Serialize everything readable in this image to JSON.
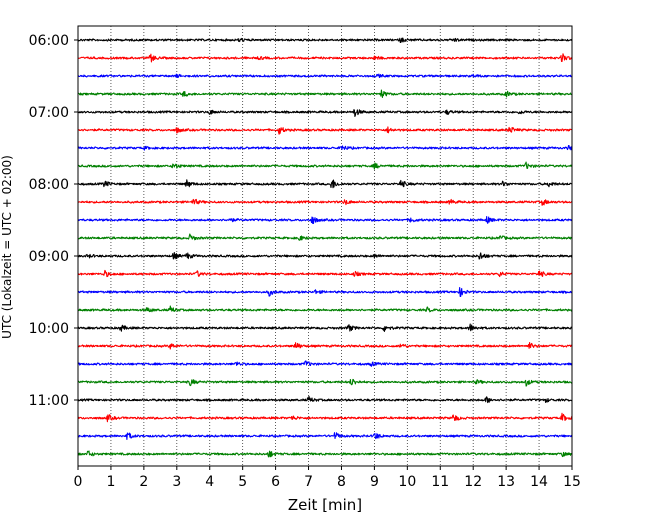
{
  "chart_data": {
    "type": "line",
    "title": "",
    "xlabel": "Zeit  [min]",
    "ylabel": "UTC (Lokalzeit = UTC + 02:00)",
    "xlim": [
      0,
      15
    ],
    "x_ticks": [
      0,
      1,
      2,
      3,
      4,
      5,
      6,
      7,
      8,
      9,
      10,
      11,
      12,
      13,
      14,
      15
    ],
    "x_tick_labels": [
      "0",
      "1",
      "2",
      "3",
      "4",
      "5",
      "6",
      "7",
      "8",
      "9",
      "10",
      "11",
      "12",
      "13",
      "14",
      "15"
    ],
    "grid": "vertical dotted",
    "trace_start": "06:00",
    "trace_minutes": 15,
    "y_tick_labels": [
      {
        "label": "06:00",
        "trace_index": 0
      },
      {
        "label": "07:00",
        "trace_index": 4
      },
      {
        "label": "08:00",
        "trace_index": 8
      },
      {
        "label": "09:00",
        "trace_index": 12
      },
      {
        "label": "10:00",
        "trace_index": 16
      },
      {
        "label": "11:00",
        "trace_index": 20
      }
    ],
    "color_cycle": [
      "#000000",
      "#ff0000",
      "#0000ff",
      "#008000"
    ],
    "series": [
      {
        "start": "06:00",
        "color": "#000000",
        "events": [
          [
            4.9,
            0.4
          ],
          [
            9.8,
            0.5
          ],
          [
            11.4,
            0.4
          ]
        ]
      },
      {
        "start": "06:15",
        "color": "#ff0000",
        "events": [
          [
            2.2,
            0.9
          ],
          [
            5.5,
            0.3
          ],
          [
            9.0,
            0.4
          ],
          [
            14.7,
            1.0
          ]
        ]
      },
      {
        "start": "06:30",
        "color": "#0000ff",
        "events": [
          [
            3.0,
            0.3
          ],
          [
            9.1,
            0.3
          ],
          [
            12.0,
            0.3
          ]
        ]
      },
      {
        "start": "06:45",
        "color": "#008000",
        "events": [
          [
            3.2,
            0.6
          ],
          [
            9.2,
            0.9
          ],
          [
            13.0,
            0.6
          ]
        ]
      },
      {
        "start": "07:00",
        "color": "#000000",
        "events": [
          [
            4.0,
            0.5
          ],
          [
            8.4,
            1.0
          ],
          [
            11.2,
            0.5
          ],
          [
            13.4,
            0.4
          ]
        ]
      },
      {
        "start": "07:15",
        "color": "#ff0000",
        "events": [
          [
            3.0,
            0.6
          ],
          [
            6.1,
            0.9
          ],
          [
            9.4,
            0.6
          ],
          [
            13.1,
            0.9
          ]
        ]
      },
      {
        "start": "07:30",
        "color": "#0000ff",
        "events": [
          [
            2.0,
            0.3
          ],
          [
            8.0,
            0.7
          ],
          [
            14.9,
            0.5
          ]
        ]
      },
      {
        "start": "07:45",
        "color": "#008000",
        "events": [
          [
            2.9,
            0.8
          ],
          [
            9.0,
            0.6
          ],
          [
            13.6,
            0.7
          ]
        ]
      },
      {
        "start": "08:00",
        "color": "#000000",
        "events": [
          [
            0.8,
            0.7
          ],
          [
            3.3,
            0.9
          ],
          [
            7.7,
            1.3
          ],
          [
            9.8,
            0.9
          ],
          [
            12.9,
            0.5
          ],
          [
            14.3,
            0.6
          ]
        ]
      },
      {
        "start": "08:15",
        "color": "#ff0000",
        "events": [
          [
            3.5,
            0.8
          ],
          [
            8.1,
            0.6
          ],
          [
            11.3,
            0.6
          ],
          [
            14.1,
            0.7
          ]
        ]
      },
      {
        "start": "08:30",
        "color": "#0000ff",
        "events": [
          [
            4.6,
            0.4
          ],
          [
            7.1,
            1.0
          ],
          [
            10.1,
            0.6
          ],
          [
            12.4,
            0.8
          ]
        ]
      },
      {
        "start": "08:45",
        "color": "#008000",
        "events": [
          [
            3.4,
            0.8
          ],
          [
            6.7,
            0.6
          ],
          [
            12.8,
            0.6
          ]
        ]
      },
      {
        "start": "09:00",
        "color": "#000000",
        "events": [
          [
            0.3,
            0.4
          ],
          [
            2.9,
            0.8
          ],
          [
            3.3,
            0.7
          ],
          [
            9.0,
            0.4
          ],
          [
            12.2,
            1.0
          ]
        ]
      },
      {
        "start": "09:15",
        "color": "#ff0000",
        "events": [
          [
            0.8,
            0.8
          ],
          [
            3.6,
            0.7
          ],
          [
            8.4,
            0.5
          ],
          [
            12.8,
            0.5
          ],
          [
            14.0,
            0.8
          ]
        ]
      },
      {
        "start": "09:30",
        "color": "#0000ff",
        "events": [
          [
            5.8,
            0.8
          ],
          [
            7.2,
            0.4
          ],
          [
            11.6,
            1.0
          ]
        ]
      },
      {
        "start": "09:45",
        "color": "#008000",
        "events": [
          [
            2.1,
            0.6
          ],
          [
            2.8,
            0.7
          ],
          [
            10.6,
            0.5
          ]
        ]
      },
      {
        "start": "10:00",
        "color": "#000000",
        "events": [
          [
            1.3,
            0.7
          ],
          [
            8.2,
            0.9
          ],
          [
            9.3,
            0.8
          ],
          [
            11.9,
            0.9
          ]
        ]
      },
      {
        "start": "10:15",
        "color": "#ff0000",
        "events": [
          [
            2.8,
            0.6
          ],
          [
            6.6,
            0.9
          ],
          [
            9.8,
            0.6
          ],
          [
            13.7,
            0.7
          ]
        ]
      },
      {
        "start": "10:30",
        "color": "#0000ff",
        "events": [
          [
            4.8,
            0.5
          ],
          [
            6.9,
            0.8
          ],
          [
            8.9,
            0.4
          ]
        ]
      },
      {
        "start": "10:45",
        "color": "#008000",
        "events": [
          [
            3.4,
            0.8
          ],
          [
            8.3,
            0.9
          ],
          [
            12.1,
            0.4
          ],
          [
            13.6,
            0.8
          ]
        ]
      },
      {
        "start": "11:00",
        "color": "#000000",
        "events": [
          [
            7.0,
            0.7
          ],
          [
            12.4,
            0.7
          ],
          [
            14.2,
            0.4
          ]
        ]
      },
      {
        "start": "11:15",
        "color": "#ff0000",
        "events": [
          [
            0.9,
            0.8
          ],
          [
            6.5,
            0.5
          ],
          [
            11.4,
            0.9
          ],
          [
            14.7,
            0.9
          ]
        ]
      },
      {
        "start": "11:30",
        "color": "#0000ff",
        "events": [
          [
            1.5,
            0.8
          ],
          [
            7.8,
            0.8
          ],
          [
            9.0,
            0.9
          ]
        ]
      },
      {
        "start": "11:45",
        "color": "#008000",
        "events": [
          [
            0.3,
            0.7
          ],
          [
            5.8,
            0.8
          ],
          [
            14.7,
            0.5
          ]
        ]
      }
    ]
  }
}
